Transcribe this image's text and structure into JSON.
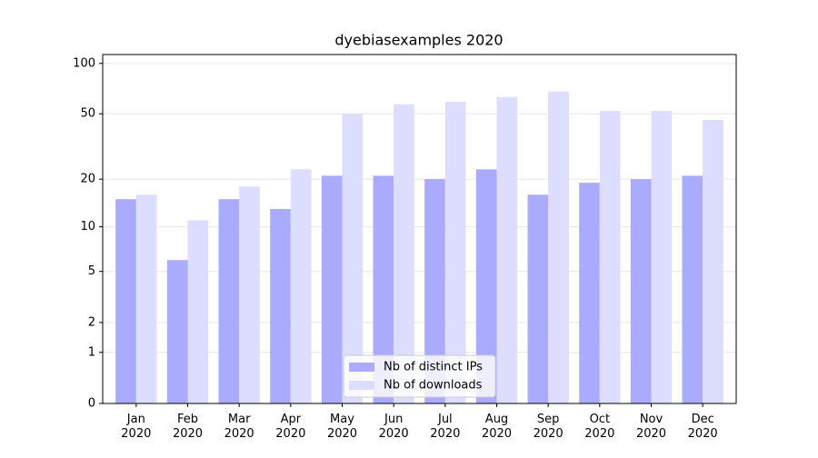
{
  "chart_data": {
    "type": "bar",
    "title": "dyebiasexamples 2020",
    "categories": [
      "Jan 2020",
      "Feb 2020",
      "Mar 2020",
      "Apr 2020",
      "May 2020",
      "Jun 2020",
      "Jul 2020",
      "Aug 2020",
      "Sep 2020",
      "Oct 2020",
      "Nov 2020",
      "Dec 2020"
    ],
    "series": [
      {
        "name": "Nb of distinct IPs",
        "color": "#aaaaff",
        "values": [
          15,
          6,
          15,
          13,
          21,
          21,
          20,
          23,
          16,
          19,
          20,
          21
        ]
      },
      {
        "name": "Nb of downloads",
        "color": "#ddddff",
        "values": [
          16,
          11,
          18,
          23,
          50,
          57,
          59,
          63,
          68,
          52,
          52,
          46
        ]
      }
    ],
    "yscale": "log1p",
    "ylim": [
      0,
      113
    ],
    "yticks": [
      0,
      1,
      2,
      5,
      10,
      20,
      50,
      100
    ],
    "grid": true,
    "legend": "lower center"
  }
}
